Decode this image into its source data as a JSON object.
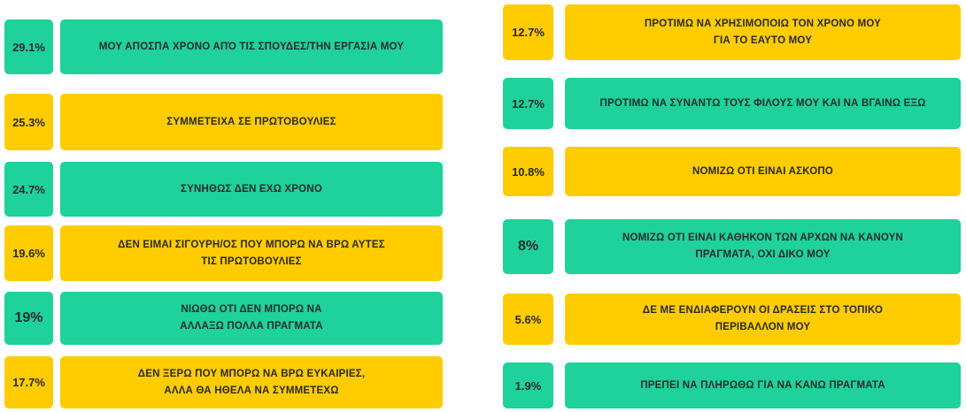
{
  "columns": [
    {
      "items": [
        {
          "percent": "29.1%",
          "lines": [
            "ΜΟΥ ΑΠΟΣΠΑ ΧΡΟΝΟ ΑΠΌ ΤΙΣ ΣΠΟΥΔΕΣ/ΤΗΝ ΕΡΓΑΣΙΑ ΜΟΥ"
          ],
          "color": "#1fd19b"
        },
        {
          "percent": "25.3%",
          "lines": [
            "ΣΥΜΜΕΤΕΙΧΑ ΣΕ ΠΡΩΤΟΒΟΥΛΙΕΣ"
          ],
          "color": "#ffcc00"
        },
        {
          "percent": "24.7%",
          "lines": [
            "ΣΥΝΗΘΩΣ ΔΕΝ ΕΧΩ ΧΡΟΝΟ"
          ],
          "color": "#1fd19b"
        },
        {
          "percent": "19.6%",
          "lines": [
            "ΔΕΝ ΕΙΜΑΙ ΣΙΓΟΥΡΗ/ΟΣ ΠΟΥ ΜΠΟΡΩ ΝΑ ΒΡΩ ΑΥΤΕΣ",
            "ΤΙΣ ΠΡΩΤΟΒΟΥΛΙΕΣ"
          ],
          "color": "#ffcc00"
        },
        {
          "percent": "19%",
          "lines": [
            "ΝΙΩΘΩ ΟΤΙ ΔΕΝ ΜΠΟΡΩ ΝΑ",
            "ΑΛΛΑΞΩ ΠΟΛΛΑ ΠΡΑΓΜΑΤΑ"
          ],
          "color": "#1fd19b"
        },
        {
          "percent": "17.7%",
          "lines": [
            "ΔΕΝ ΞΕΡΩ ΠΟΥ ΜΠΟΡΩ ΝΑ ΒΡΩ ΕΥΚΑΙΡΙΕΣ,",
            "ΑΛΛΑ ΘΑ ΗΘΕΛΑ ΝΑ ΣΥΜΜΕΤΕΧΩ"
          ],
          "color": "#ffcc00"
        }
      ]
    },
    {
      "items": [
        {
          "percent": "12.7%",
          "lines": [
            "ΠΡΟΤΙΜΩ ΝΑ ΧΡΗΣΙΜΟΠΟΙΩ ΤΟΝ ΧΡΟΝΟ ΜΟΥ",
            "ΓΙΑ ΤΟ ΕΑΥΤΟ ΜΟΥ"
          ],
          "color": "#ffcc00"
        },
        {
          "percent": "12.7%",
          "lines": [
            "ΠΡΟΤΙΜΩ ΝΑ ΣΥΝΑΝΤΩ ΤΟΥΣ ΦΙΛΟΥΣ ΜΟΥ ΚΑΙ ΝΑ ΒΓΑΙΝΩ ΕΞΩ"
          ],
          "color": "#1fd19b"
        },
        {
          "percent": "10.8%",
          "lines": [
            "ΝΟΜΙΖΩ ΟΤΙ ΕΙΝΑΙ ΑΣΚΟΠΟ"
          ],
          "color": "#ffcc00"
        },
        {
          "percent": "8%",
          "lines": [
            "ΝΟΜΙΖΩ ΟΤΙ ΕΙΝΑΙ ΚΑΘΗΚΟΝ ΤΩΝ ΑΡΧΩΝ ΝΑ ΚΑΝΟΥΝ",
            "ΠΡΑΓΜΑΤΑ, ΟΧΙ ΔΙΚΟ ΜΟΥ"
          ],
          "color": "#1fd19b"
        },
        {
          "percent": "5.6%",
          "lines": [
            "ΔΕ ΜΕ ΕΝΔΙΑΦΕΡΟΥΝ ΟΙ ΔΡΑΣΕΙΣ ΣΤΟ ΤΟΠΙΚΟ",
            "ΠΕΡΙΒΑΛΛΟΝ ΜΟΥ"
          ],
          "color": "#ffcc00"
        },
        {
          "percent": "1.9%",
          "lines": [
            "ΠΡΕΠΕΙ ΝΑ ΠΛΗΡΩΘΩ ΓΙΑ ΝΑ ΚΑΝΩ ΠΡΑΓΜΑΤΑ"
          ],
          "color": "#1fd19b"
        }
      ]
    }
  ]
}
